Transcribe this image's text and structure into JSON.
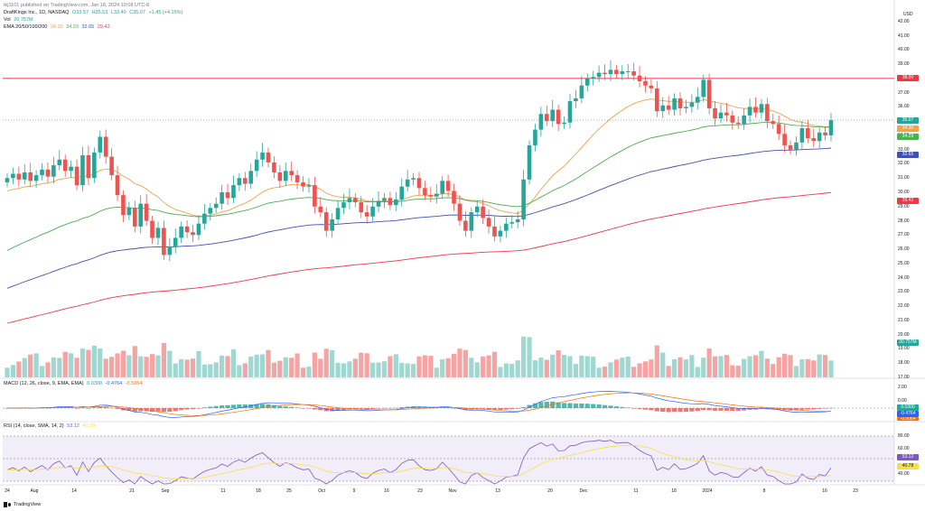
{
  "publisher": "tkj1101 published on TradingView.com, Jan 18, 2024 10:08 UTC-8",
  "symbol": {
    "name": "DraftKings Inc., 1D, NASDAQ",
    "ohlc": [
      "O33.57",
      "H35.53",
      "L33.40",
      "C35.07",
      "+1.45 (+4.15%)"
    ],
    "vol_label": "Vol",
    "vol_value": "20.757M",
    "ema_label": "EMA 20/50/100/200",
    "ema_values": [
      "34.30",
      "34.29",
      "32.65",
      "29.42"
    ]
  },
  "currency": "USD",
  "price_axis": [
    "42.00",
    "41.00",
    "40.00",
    "39.00",
    "38.00",
    "37.00",
    "36.00",
    "35.00",
    "34.00",
    "33.00",
    "32.00",
    "31.00",
    "30.00",
    "29.00",
    "28.00",
    "27.00",
    "26.00",
    "25.00",
    "24.00",
    "23.00",
    "22.00",
    "21.00",
    "20.00",
    "19.00",
    "18.00",
    "17.00"
  ],
  "price_labels": [
    {
      "text": "38.00",
      "color": "#f23645"
    },
    {
      "text": "35.07",
      "color": "#26a69a"
    },
    {
      "text": "34.30",
      "color": "#f7a046"
    },
    {
      "text": "34.29",
      "color": "#4caf50"
    },
    {
      "text": "32.65",
      "color": "#3f51b5"
    },
    {
      "text": "29.42",
      "color": "#f23645"
    },
    {
      "text": "20.757M",
      "color": "#26a69a"
    }
  ],
  "macd": {
    "label": "MACD (12, 26, close, 9, EMA, EMA)",
    "values": [
      "0.0300",
      "-0.4764",
      "-0.5064"
    ],
    "axis": [
      "2.00",
      "0.00"
    ],
    "labels": [
      {
        "text": "0.0300",
        "color": "#26a69a"
      },
      {
        "text": "-0.4764",
        "color": "#2962ff"
      },
      {
        "text": "-0.5064",
        "color": "#ff6d00"
      }
    ]
  },
  "rsi": {
    "label": "RSI (14, close, SMA, 14, 2)",
    "values": [
      "53.12",
      "40.78"
    ],
    "axis": [
      "80.00",
      "60.00",
      "40.00"
    ],
    "labels": [
      {
        "text": "53.12",
        "color": "#7e57c2"
      },
      {
        "text": "40.78",
        "color": "#f7e046"
      }
    ]
  },
  "dates": [
    "24",
    "Aug",
    "14",
    "21",
    "Sep",
    "11",
    "18",
    "25",
    "Oct",
    "9",
    "16",
    "23",
    "Nov",
    "13",
    "20",
    "Dec",
    "11",
    "18",
    "2024",
    "8",
    "16",
    "23"
  ],
  "tradingview": "TradingView",
  "chart_data": {
    "type": "candlestick",
    "title": "DraftKings Inc., 1D, NASDAQ",
    "ylim": [
      17,
      43
    ],
    "resistance_level": 38.0,
    "closes": [
      31.0,
      31.3,
      30.9,
      31.4,
      30.8,
      31.2,
      31.6,
      31.1,
      31.9,
      32.3,
      31.5,
      31.8,
      30.5,
      32.6,
      31.0,
      32.8,
      33.9,
      32.5,
      31.2,
      29.8,
      28.4,
      28.9,
      27.6,
      29.2,
      28.0,
      26.8,
      27.5,
      25.6,
      26.2,
      26.8,
      27.6,
      27.2,
      27.0,
      27.8,
      28.5,
      28.9,
      29.2,
      30.0,
      29.6,
      30.5,
      31.0,
      30.6,
      31.5,
      32.3,
      32.8,
      32.1,
      31.4,
      30.8,
      31.5,
      31.2,
      30.7,
      30.4,
      30.5,
      29.0,
      28.6,
      27.3,
      28.1,
      28.9,
      29.3,
      29.6,
      29.3,
      28.6,
      28.3,
      29.0,
      29.4,
      29.6,
      29.1,
      29.5,
      30.4,
      30.9,
      31.0,
      30.3,
      29.8,
      29.7,
      29.9,
      30.8,
      30.1,
      29.2,
      28.0,
      27.3,
      28.6,
      29.0,
      28.2,
      27.6,
      26.9,
      27.3,
      27.8,
      27.9,
      28.1,
      30.9,
      33.3,
      34.4,
      35.5,
      35.0,
      35.8,
      34.8,
      34.9,
      36.4,
      36.6,
      37.5,
      38.0,
      38.1,
      38.4,
      38.3,
      38.6,
      38.3,
      38.5,
      38.5,
      38.2,
      37.8,
      37.5,
      37.3,
      35.7,
      36.1,
      35.8,
      36.6,
      35.9,
      36.0,
      36.3,
      36.7,
      37.9,
      35.9,
      35.2,
      35.6,
      35.4,
      34.9,
      34.8,
      35.4,
      36.0,
      35.6,
      36.2,
      35.0,
      34.8,
      34.1,
      33.3,
      33.0,
      33.5,
      34.5,
      33.8,
      33.6,
      34.2,
      34.0,
      35.07
    ],
    "ema_series": [
      {
        "name": "EMA 20",
        "color": "#f7a046",
        "last": 34.3
      },
      {
        "name": "EMA 50",
        "color": "#4caf50",
        "last": 34.29
      },
      {
        "name": "EMA 100",
        "color": "#3f51b5",
        "last": 32.65
      },
      {
        "name": "EMA 200",
        "color": "#f23645",
        "last": 29.42
      }
    ],
    "volume_last": "20.757M"
  }
}
